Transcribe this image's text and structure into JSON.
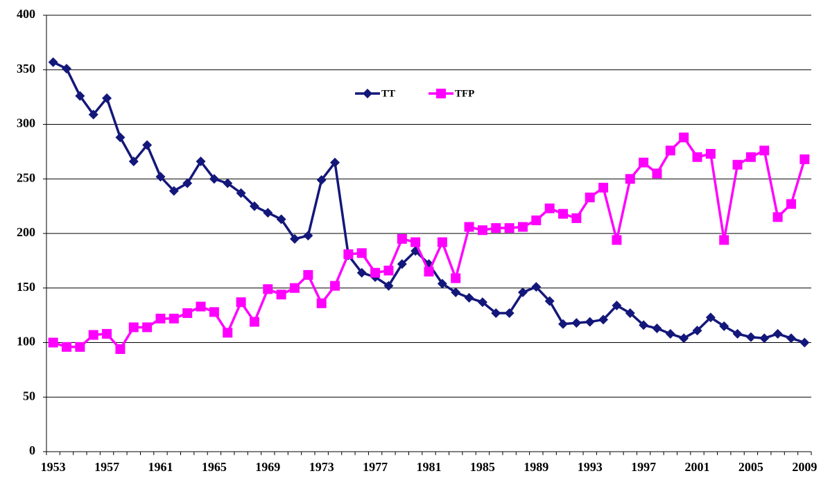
{
  "chart_data": {
    "type": "line",
    "categories": [
      "1953",
      null,
      null,
      null,
      "1957",
      null,
      null,
      null,
      "1961",
      null,
      null,
      null,
      "1965",
      null,
      null,
      null,
      "1969",
      null,
      null,
      null,
      "1973",
      null,
      null,
      null,
      "1977",
      null,
      null,
      null,
      "1981",
      null,
      null,
      null,
      "1985",
      null,
      null,
      null,
      "1989",
      null,
      null,
      null,
      "1993",
      null,
      null,
      null,
      "1997",
      null,
      null,
      null,
      "2001",
      null,
      null,
      null,
      "2005",
      null,
      null,
      null,
      "2009"
    ],
    "series": [
      {
        "name": "TT",
        "color": "#14177a",
        "marker": "diamond",
        "values": [
          357,
          351,
          326,
          309,
          324,
          288,
          266,
          281,
          252,
          239,
          246,
          266,
          250,
          246,
          237,
          225,
          219,
          213,
          195,
          198,
          249,
          265,
          180,
          164,
          160,
          152,
          172,
          184,
          172,
          154,
          146,
          141,
          137,
          127,
          127,
          146,
          151,
          138,
          117,
          118,
          119,
          121,
          134,
          127,
          116,
          113,
          108,
          104,
          111,
          123,
          115,
          108,
          105,
          104,
          108,
          104,
          100
        ]
      },
      {
        "name": "TFP",
        "color": "#ff00ff",
        "marker": "square",
        "values": [
          100,
          96,
          96,
          107,
          108,
          94,
          114,
          114,
          122,
          122,
          127,
          133,
          128,
          109,
          137,
          119,
          149,
          144,
          150,
          162,
          136,
          152,
          181,
          182,
          164,
          166,
          195,
          192,
          165,
          192,
          159,
          206,
          203,
          205,
          205,
          206,
          212,
          223,
          218,
          214,
          233,
          242,
          194,
          250,
          265,
          255,
          276,
          288,
          270,
          273,
          194,
          263,
          270,
          276,
          215,
          227,
          268
        ]
      }
    ],
    "ylim": [
      0,
      400
    ],
    "yticks": [
      0,
      50,
      100,
      150,
      200,
      250,
      300,
      350,
      400
    ],
    "grid": true,
    "legend": "top-center"
  }
}
